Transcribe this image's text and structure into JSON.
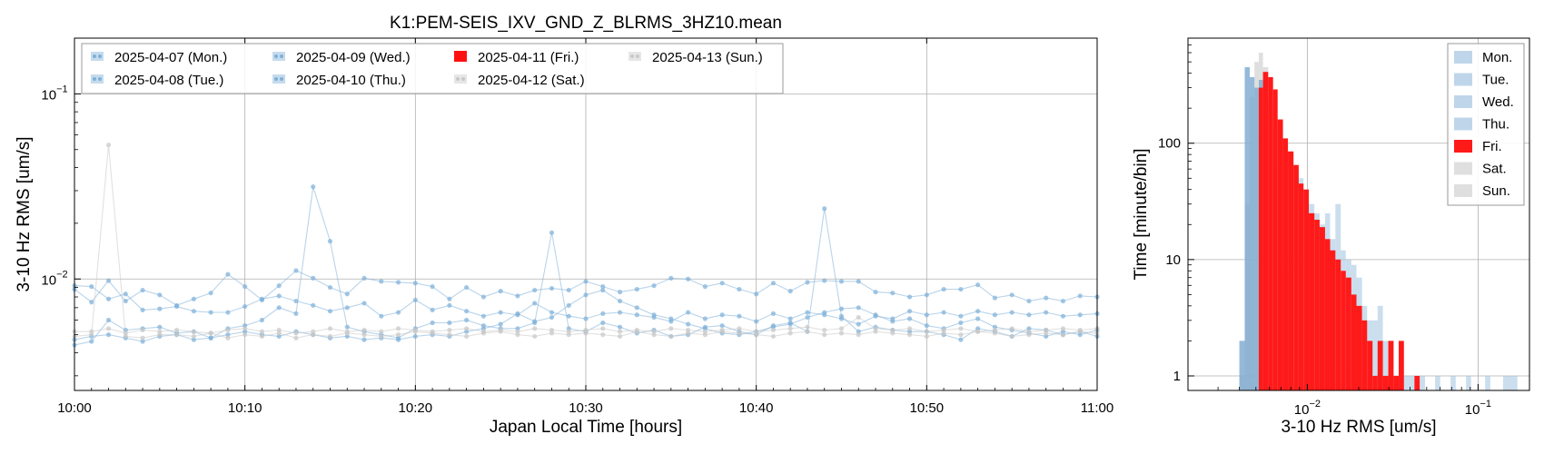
{
  "title": "K1:PEM-SEIS_IXV_GND_Z_BLRMS_3HZ10.mean",
  "colors": {
    "weekday": "#7fb0d8",
    "friday": "#ff1010",
    "weekend": "#c8c8c8",
    "hist_weekday": "#a9c8e3",
    "hist_fri": "#ff1a1a",
    "hist_weekend": "#d4d4d4"
  },
  "chart_data": [
    {
      "type": "line",
      "xlabel": "Japan Local Time [hours]",
      "ylabel": "3-10 Hz RMS [um/s]",
      "y_scale": "log",
      "ylim": [
        0.0025,
        0.2
      ],
      "xlim": [
        "10:00",
        "11:00"
      ],
      "x_tick_labels": [
        "10:00",
        "10:10",
        "10:20",
        "10:30",
        "10:40",
        "10:50",
        "11:00"
      ],
      "y_ticks": [
        {
          "value": 0.01,
          "label": "10",
          "exp": "−2"
        },
        {
          "value": 0.1,
          "label": "10",
          "exp": "−1"
        }
      ],
      "grid": true,
      "legend_position": "top-left",
      "x_minutes": [
        0,
        1,
        2,
        3,
        4,
        5,
        6,
        7,
        8,
        9,
        10,
        11,
        12,
        13,
        14,
        15,
        16,
        17,
        18,
        19,
        20,
        21,
        22,
        23,
        24,
        25,
        26,
        27,
        28,
        29,
        30,
        31,
        32,
        33,
        34,
        35,
        36,
        37,
        38,
        39,
        40,
        41,
        42,
        43,
        44,
        45,
        46,
        47,
        48,
        49,
        50,
        51,
        52,
        53,
        54,
        55,
        56,
        57,
        58,
        59,
        60
      ],
      "series": [
        {
          "name": "2025-04-07 (Mon.)",
          "group": "weekday",
          "values": [
            0.0092,
            0.0091,
            0.0078,
            0.0083,
            0.0068,
            0.0069,
            0.0071,
            0.0067,
            0.0066,
            0.0066,
            0.0071,
            0.0078,
            0.0081,
            0.0076,
            0.0072,
            0.0067,
            0.007,
            0.0074,
            0.0063,
            0.0066,
            0.0077,
            0.0068,
            0.0072,
            0.0067,
            0.0063,
            0.0066,
            0.0064,
            0.0074,
            0.0066,
            0.0063,
            0.0061,
            0.0065,
            0.0066,
            0.0064,
            0.0062,
            0.0059,
            0.0066,
            0.0061,
            0.0064,
            0.0063,
            0.0059,
            0.0065,
            0.0061,
            0.0066,
            0.0064,
            0.0061,
            0.0057,
            0.0063,
            0.0061,
            0.0067,
            0.0064,
            0.0066,
            0.0063,
            0.0067,
            0.0064,
            0.0066,
            0.0064,
            0.0066,
            0.0063,
            0.0064,
            0.0065
          ]
        },
        {
          "name": "2025-04-08 (Tue.)",
          "group": "weekday",
          "values": [
            0.0088,
            0.0075,
            0.0098,
            0.0076,
            0.0087,
            0.0082,
            0.0072,
            0.0078,
            0.0084,
            0.0106,
            0.0091,
            0.0077,
            0.0092,
            0.0111,
            0.0101,
            0.009,
            0.0083,
            0.0101,
            0.0097,
            0.0096,
            0.0095,
            0.0091,
            0.0078,
            0.009,
            0.008,
            0.0086,
            0.0081,
            0.0087,
            0.0089,
            0.0087,
            0.0097,
            0.0091,
            0.0085,
            0.0088,
            0.0092,
            0.0101,
            0.01,
            0.0091,
            0.0095,
            0.0088,
            0.0083,
            0.0095,
            0.0086,
            0.0096,
            0.0098,
            0.0097,
            0.0097,
            0.0085,
            0.0084,
            0.008,
            0.0082,
            0.0088,
            0.0088,
            0.0093,
            0.0079,
            0.0082,
            0.0076,
            0.0079,
            0.0076,
            0.0081,
            0.008
          ]
        },
        {
          "name": "2025-04-09 (Wed.)",
          "group": "weekday",
          "values": [
            0.0044,
            0.0046,
            0.006,
            0.0053,
            0.0054,
            0.0055,
            0.0051,
            0.0052,
            0.0048,
            0.0054,
            0.0056,
            0.006,
            0.007,
            0.0065,
            0.0315,
            0.016,
            0.0055,
            0.0052,
            0.005,
            0.0048,
            0.0054,
            0.0058,
            0.0058,
            0.006,
            0.0056,
            0.0054,
            0.0054,
            0.0058,
            0.0178,
            0.0054,
            0.0052,
            0.0058,
            0.0055,
            0.0051,
            0.0053,
            0.0049,
            0.005,
            0.0055,
            0.0056,
            0.0052,
            0.005,
            0.0056,
            0.0058,
            0.0052,
            0.024,
            0.0063,
            0.0052,
            0.0055,
            0.0053,
            0.0052,
            0.0052,
            0.005,
            0.0047,
            0.0054,
            0.0052,
            0.0049,
            0.0054,
            0.0053,
            0.005,
            0.0052,
            0.0049
          ]
        },
        {
          "name": "2025-04-10 (Thu.)",
          "group": "weekday",
          "values": [
            0.0047,
            0.0049,
            0.005,
            0.0048,
            0.0046,
            0.0049,
            0.005,
            0.0047,
            0.0048,
            0.005,
            0.0052,
            0.005,
            0.0049,
            0.0052,
            0.005,
            0.0048,
            0.0049,
            0.0047,
            0.0048,
            0.0047,
            0.0049,
            0.005,
            0.0049,
            0.0052,
            0.0054,
            0.0057,
            0.0065,
            0.0059,
            0.0062,
            0.0072,
            0.0082,
            0.0087,
            0.0076,
            0.007,
            0.0064,
            0.0061,
            0.0057,
            0.0054,
            0.0051,
            0.005,
            0.0052,
            0.0055,
            0.0057,
            0.0062,
            0.0066,
            0.0069,
            0.007,
            0.0064,
            0.0059,
            0.0061,
            0.0056,
            0.0054,
            0.0058,
            0.0061,
            0.0055,
            0.0053,
            0.0051,
            0.0049,
            0.0052,
            0.005,
            0.0053
          ]
        },
        {
          "name": "2025-04-11 (Fri.)",
          "group": "friday",
          "values": []
        },
        {
          "name": "2025-04-12 (Sat.)",
          "group": "weekend",
          "values": [
            0.0049,
            0.005,
            0.0052,
            0.0049,
            0.0048,
            0.005,
            0.005,
            0.0049,
            0.0051,
            0.0048,
            0.005,
            0.0049,
            0.0051,
            0.0048,
            0.005,
            0.0049,
            0.0051,
            0.005,
            0.0049,
            0.005,
            0.0052,
            0.0051,
            0.005,
            0.0049,
            0.0051,
            0.0052,
            0.005,
            0.0049,
            0.0051,
            0.005,
            0.0051,
            0.005,
            0.0049,
            0.0052,
            0.005,
            0.0049,
            0.0051,
            0.005,
            0.0052,
            0.0051,
            0.005,
            0.0049,
            0.0051,
            0.0052,
            0.005,
            0.0051,
            0.005,
            0.0052,
            0.0051,
            0.005,
            0.0049,
            0.0051,
            0.005,
            0.0052,
            0.0051,
            0.0049,
            0.005,
            0.0051,
            0.005,
            0.0052,
            0.0051
          ]
        },
        {
          "name": "2025-04-13 (Sun.)",
          "group": "weekend",
          "values": [
            0.0052,
            0.0052,
            0.0054,
            0.0051,
            0.0053,
            0.0052,
            0.0053,
            0.0052,
            0.0051,
            0.0053,
            0.0054,
            0.0052,
            0.0053,
            0.0051,
            0.0052,
            0.0054,
            0.0052,
            0.0053,
            0.0052,
            0.0054,
            0.0053,
            0.0052,
            0.0053,
            0.0054,
            0.0052,
            0.0053,
            0.0052,
            0.0054,
            0.0053,
            0.0052,
            0.0053,
            0.0054,
            0.0052,
            0.0053,
            0.0052,
            0.0054,
            0.0053,
            0.0052,
            0.0053,
            0.0054,
            0.0052,
            0.0053,
            0.0054,
            0.0055,
            0.0053,
            0.0054,
            0.0062,
            0.0054,
            0.0053,
            0.0054,
            0.0052,
            0.0053,
            0.0054,
            0.0052,
            0.0053,
            0.0054,
            0.0052,
            0.0053,
            0.0054,
            0.0053,
            0.0054
          ]
        }
      ],
      "extra_spikes": [
        {
          "series": "2025-04-12 (Sat.)",
          "x_minute": 2,
          "value": 0.053
        }
      ]
    },
    {
      "type": "bar",
      "subtype": "histogram",
      "xlabel": "3-10 Hz RMS [um/s]",
      "ylabel": "Time [minute/bin]",
      "x_scale": "log",
      "y_scale": "log",
      "xlim": [
        0.002,
        0.2
      ],
      "ylim": [
        0.75,
        800
      ],
      "x_ticks": [
        {
          "value": 0.01,
          "label": "10",
          "exp": "−2"
        },
        {
          "value": 0.1,
          "label": "10",
          "exp": "−1"
        }
      ],
      "y_ticks": [
        {
          "value": 1,
          "label": "1"
        },
        {
          "value": 10,
          "label": "10"
        },
        {
          "value": 100,
          "label": "100"
        }
      ],
      "grid": true,
      "legend_position": "top-right",
      "legend": [
        {
          "label": "Mon.",
          "group": "weekday"
        },
        {
          "label": "Tue.",
          "group": "weekday"
        },
        {
          "label": "Wed.",
          "group": "weekday"
        },
        {
          "label": "Thu.",
          "group": "weekday"
        },
        {
          "label": "Fri.",
          "group": "friday"
        },
        {
          "label": "Sat.",
          "group": "weekend"
        },
        {
          "label": "Sun.",
          "group": "weekend"
        }
      ],
      "weekday_bins": [
        {
          "lo": 0.004,
          "hi": 0.0043,
          "count": 2
        },
        {
          "lo": 0.0043,
          "hi": 0.0046,
          "count": 450
        },
        {
          "lo": 0.0046,
          "hi": 0.0049,
          "count": 370
        },
        {
          "lo": 0.0049,
          "hi": 0.0052,
          "count": 300
        },
        {
          "lo": 0.0052,
          "hi": 0.0055,
          "count": 350
        },
        {
          "lo": 0.0055,
          "hi": 0.0059,
          "count": 240
        },
        {
          "lo": 0.0059,
          "hi": 0.0063,
          "count": 200
        },
        {
          "lo": 0.0063,
          "hi": 0.0067,
          "count": 150
        },
        {
          "lo": 0.0067,
          "hi": 0.0072,
          "count": 120
        },
        {
          "lo": 0.0072,
          "hi": 0.0077,
          "count": 100
        },
        {
          "lo": 0.0077,
          "hi": 0.0083,
          "count": 70
        },
        {
          "lo": 0.0083,
          "hi": 0.0089,
          "count": 60
        },
        {
          "lo": 0.0089,
          "hi": 0.0095,
          "count": 50
        },
        {
          "lo": 0.0095,
          "hi": 0.0102,
          "count": 40
        },
        {
          "lo": 0.0102,
          "hi": 0.011,
          "count": 30
        },
        {
          "lo": 0.011,
          "hi": 0.0118,
          "count": 25
        },
        {
          "lo": 0.0118,
          "hi": 0.0127,
          "count": 20
        },
        {
          "lo": 0.0127,
          "hi": 0.0136,
          "count": 25
        },
        {
          "lo": 0.0136,
          "hi": 0.0146,
          "count": 15
        },
        {
          "lo": 0.0146,
          "hi": 0.0157,
          "count": 30
        },
        {
          "lo": 0.0157,
          "hi": 0.0168,
          "count": 12
        },
        {
          "lo": 0.0168,
          "hi": 0.0181,
          "count": 10
        },
        {
          "lo": 0.0181,
          "hi": 0.0194,
          "count": 9
        },
        {
          "lo": 0.0194,
          "hi": 0.0209,
          "count": 7
        },
        {
          "lo": 0.0209,
          "hi": 0.0224,
          "count": 4
        },
        {
          "lo": 0.0224,
          "hi": 0.0241,
          "count": 3
        },
        {
          "lo": 0.0241,
          "hi": 0.0258,
          "count": 3
        },
        {
          "lo": 0.0258,
          "hi": 0.0277,
          "count": 4
        },
        {
          "lo": 0.0277,
          "hi": 0.0298,
          "count": 2
        },
        {
          "lo": 0.0298,
          "hi": 0.032,
          "count": 1
        },
        {
          "lo": 0.032,
          "hi": 0.0343,
          "count": 1
        },
        {
          "lo": 0.0343,
          "hi": 0.0368,
          "count": 1
        },
        {
          "lo": 0.0368,
          "hi": 0.0395,
          "count": 1
        },
        {
          "lo": 0.0395,
          "hi": 0.0424,
          "count": 1
        },
        {
          "lo": 0.0424,
          "hi": 0.0455,
          "count": 1
        },
        {
          "lo": 0.0455,
          "hi": 0.0489,
          "count": 1
        },
        {
          "lo": 0.056,
          "hi": 0.06,
          "count": 1
        },
        {
          "lo": 0.069,
          "hi": 0.074,
          "count": 1
        },
        {
          "lo": 0.085,
          "hi": 0.091,
          "count": 1
        },
        {
          "lo": 0.11,
          "hi": 0.118,
          "count": 1
        },
        {
          "lo": 0.14,
          "hi": 0.17,
          "count": 1
        }
      ],
      "weekend_bins": [
        {
          "lo": 0.004,
          "hi": 0.0043,
          "count": 1
        },
        {
          "lo": 0.0043,
          "hi": 0.0046,
          "count": 30
        },
        {
          "lo": 0.0046,
          "hi": 0.0049,
          "count": 250
        },
        {
          "lo": 0.0049,
          "hi": 0.0052,
          "count": 500
        },
        {
          "lo": 0.0052,
          "hi": 0.0055,
          "count": 600
        },
        {
          "lo": 0.0055,
          "hi": 0.0059,
          "count": 450
        },
        {
          "lo": 0.0059,
          "hi": 0.0063,
          "count": 200
        },
        {
          "lo": 0.0063,
          "hi": 0.0067,
          "count": 60
        },
        {
          "lo": 0.0067,
          "hi": 0.0072,
          "count": 20
        },
        {
          "lo": 0.0072,
          "hi": 0.0077,
          "count": 8
        }
      ],
      "friday_bins": [
        {
          "lo": 0.0052,
          "hi": 0.0055,
          "count": 300
        },
        {
          "lo": 0.0055,
          "hi": 0.0059,
          "count": 410
        },
        {
          "lo": 0.0059,
          "hi": 0.0063,
          "count": 370
        },
        {
          "lo": 0.0063,
          "hi": 0.0067,
          "count": 290
        },
        {
          "lo": 0.0067,
          "hi": 0.0072,
          "count": 160
        },
        {
          "lo": 0.0072,
          "hi": 0.0077,
          "count": 110
        },
        {
          "lo": 0.0077,
          "hi": 0.0083,
          "count": 85
        },
        {
          "lo": 0.0083,
          "hi": 0.0089,
          "count": 65
        },
        {
          "lo": 0.0089,
          "hi": 0.0095,
          "count": 45
        },
        {
          "lo": 0.0095,
          "hi": 0.0102,
          "count": 40
        },
        {
          "lo": 0.0102,
          "hi": 0.011,
          "count": 25
        },
        {
          "lo": 0.011,
          "hi": 0.0118,
          "count": 22
        },
        {
          "lo": 0.0118,
          "hi": 0.0127,
          "count": 19
        },
        {
          "lo": 0.0127,
          "hi": 0.0136,
          "count": 15
        },
        {
          "lo": 0.0136,
          "hi": 0.0146,
          "count": 12
        },
        {
          "lo": 0.0146,
          "hi": 0.0157,
          "count": 10
        },
        {
          "lo": 0.0157,
          "hi": 0.0168,
          "count": 8
        },
        {
          "lo": 0.0168,
          "hi": 0.0181,
          "count": 7
        },
        {
          "lo": 0.0181,
          "hi": 0.0194,
          "count": 5
        },
        {
          "lo": 0.0194,
          "hi": 0.0209,
          "count": 4
        },
        {
          "lo": 0.0209,
          "hi": 0.0224,
          "count": 3
        },
        {
          "lo": 0.0224,
          "hi": 0.0241,
          "count": 2
        },
        {
          "lo": 0.0241,
          "hi": 0.0258,
          "count": 1
        },
        {
          "lo": 0.0258,
          "hi": 0.0277,
          "count": 2
        },
        {
          "lo": 0.0277,
          "hi": 0.0298,
          "count": 1
        },
        {
          "lo": 0.0298,
          "hi": 0.032,
          "count": 2
        },
        {
          "lo": 0.032,
          "hi": 0.0343,
          "count": 1
        },
        {
          "lo": 0.0343,
          "hi": 0.0368,
          "count": 2
        },
        {
          "lo": 0.0424,
          "hi": 0.0455,
          "count": 1
        }
      ]
    }
  ]
}
